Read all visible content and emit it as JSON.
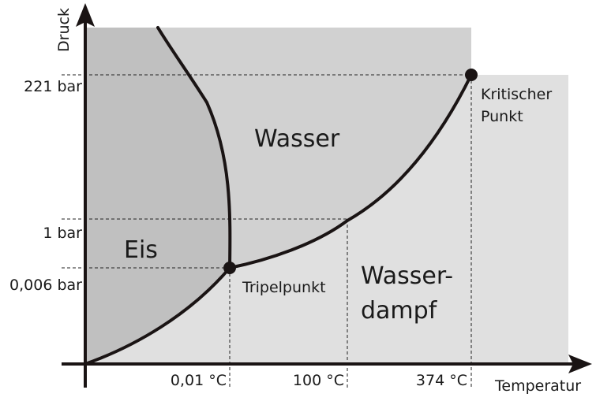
{
  "axes": {
    "y_title": "Druck",
    "x_title": "Temperatur"
  },
  "y_ticks": [
    "221 bar",
    "1 bar",
    "0,006 bar"
  ],
  "x_ticks": [
    "0,01 °C",
    "100 °C",
    "374 °C"
  ],
  "regions": {
    "ice": "Eis",
    "water": "Wasser",
    "vapor_line1": "Wasser-",
    "vapor_line2": "dampf"
  },
  "points": {
    "triple": "Tripelpunkt",
    "critical_line1": "Kritischer",
    "critical_line2": "Punkt"
  },
  "colors": {
    "ice_region": "#c0c0c0",
    "water_region": "#d1d1d1",
    "vapor_region": "#e0e0e0",
    "curve": "#1a1414",
    "axis": "#1a1414"
  }
}
